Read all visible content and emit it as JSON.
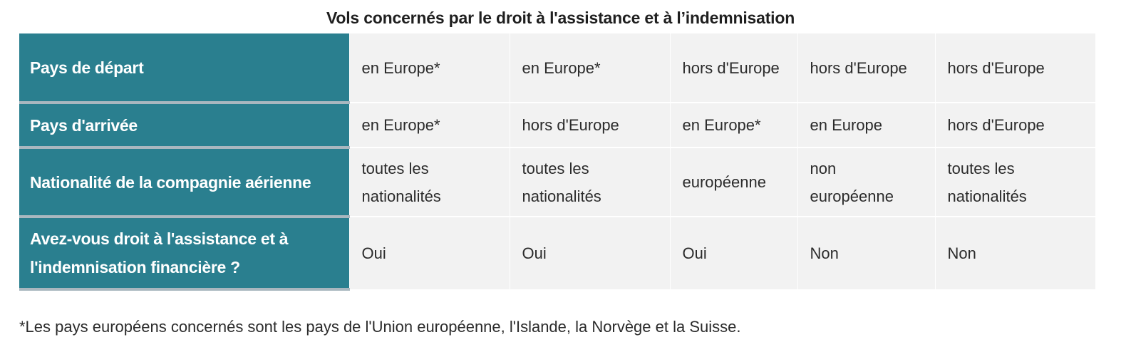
{
  "title": "Vols concernés par le droit à l'assistance et à l’indemnisation",
  "table": {
    "rows": [
      {
        "header": "Pays de départ",
        "cells": [
          "en Europe*",
          "en Europe*",
          "hors d'Europe",
          "hors d'Europe",
          "hors d'Europe"
        ]
      },
      {
        "header": "Pays d'arrivée",
        "cells": [
          "en Europe*",
          "hors d'Europe",
          "en Europe*",
          "en Europe",
          "hors d'Europe"
        ]
      },
      {
        "header": "Nationalité de la compagnie aérienne",
        "cells": [
          "toutes les nationalités",
          "toutes les nationalités",
          "européenne",
          "non européenne",
          "toutes les nationalités"
        ]
      },
      {
        "header": "Avez-vous droit à l'assistance et à l'indemnisation financière ?",
        "cells": [
          "Oui",
          "Oui",
          "Oui",
          "Non",
          "Non"
        ]
      }
    ]
  },
  "footnote": "*Les pays européens concernés sont les pays de l'Union européenne, l'Islande, la Norvège et la Suisse.",
  "colors": {
    "header_bg": "#2a7f8f",
    "cell_bg": "#f2f2f2"
  }
}
